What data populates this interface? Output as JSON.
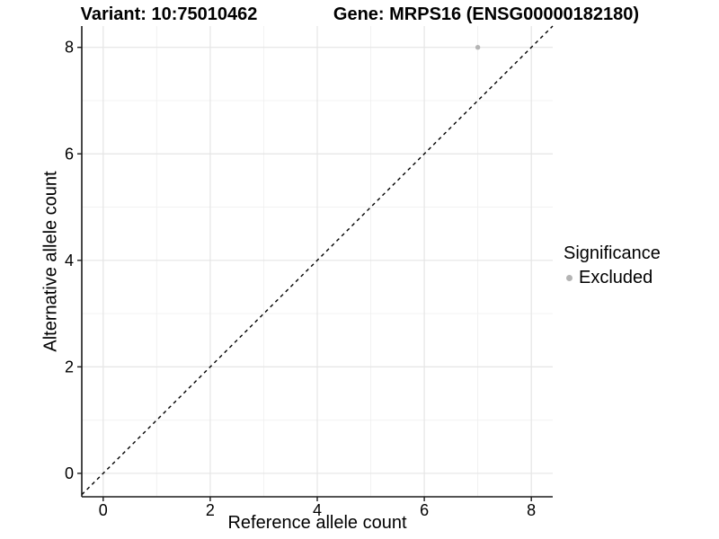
{
  "chart_data": {
    "type": "scatter",
    "title_left": "Variant: 10:75010462",
    "title_right": "Gene: MRPS16 (ENSG00000182180)",
    "xlabel": "Reference allele count",
    "ylabel": "Alternative allele count",
    "xlim": [
      -0.4,
      8.4
    ],
    "ylim": [
      -0.44,
      8.4
    ],
    "x_ticks": [
      0,
      2,
      4,
      6,
      8
    ],
    "y_ticks": [
      0,
      2,
      4,
      6,
      8
    ],
    "x_minor_gridlines": [
      1,
      3,
      5,
      7
    ],
    "y_minor_gridlines": [
      1,
      3,
      5,
      7
    ],
    "grid": true,
    "legend_position": "right",
    "identity_line": {
      "slope": 1,
      "intercept": 0,
      "style": "dashed",
      "color": "#000000"
    },
    "series": [
      {
        "name": "Excluded",
        "color": "#b4b4b4",
        "points": [
          {
            "x": 7,
            "y": 8
          }
        ]
      }
    ],
    "legend": {
      "title": "Significance",
      "entries": [
        {
          "label": "Excluded",
          "color": "#b4b4b4"
        }
      ]
    },
    "colors": {
      "background": "#ffffff",
      "grid_major": "#e5e5e5",
      "grid_minor": "#f0f0f0",
      "axis_line": "#1a1a1a",
      "tick_mark": "#1a1a1a",
      "tick_label": "#000000",
      "point": "#b4b4b4",
      "identity_line": "#000000"
    }
  }
}
